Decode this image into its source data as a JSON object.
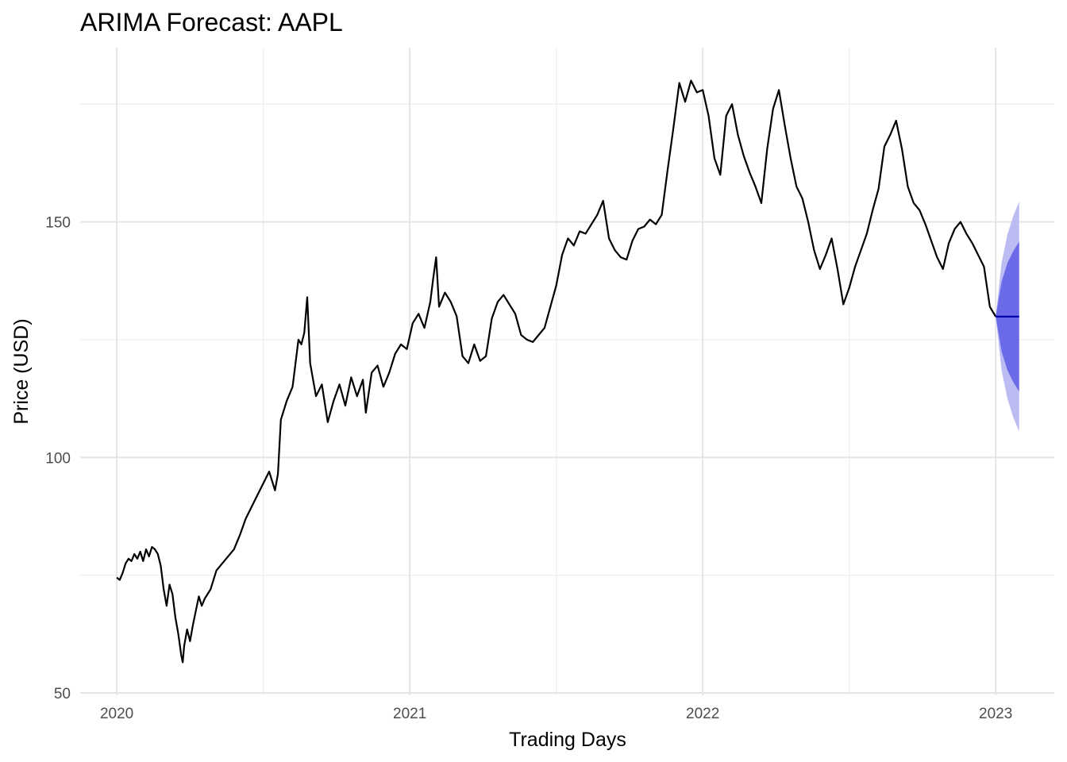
{
  "chart_data": {
    "type": "line",
    "title": "ARIMA Forecast: AAPL",
    "xlabel": "Trading Days",
    "ylabel": "Price (USD)",
    "xlim": [
      2019.875,
      2023.2
    ],
    "ylim": [
      49.5,
      187
    ],
    "x_ticks": [
      2020,
      2021,
      2022,
      2023
    ],
    "x_tick_labels": [
      "2020",
      "2021",
      "2022",
      "2023"
    ],
    "x_minor_ticks": [
      2020.5,
      2021.5,
      2022.5
    ],
    "y_ticks": [
      50,
      100,
      150
    ],
    "y_tick_labels": [
      "50",
      "100",
      "150"
    ],
    "y_minor_ticks": [
      75,
      125,
      175
    ],
    "grid": true,
    "legend": "none",
    "colors": {
      "history": "#000000",
      "forecast_mean": "#0000aa",
      "band_80": "#6b6bea",
      "band_95": "#bcbcf3"
    },
    "series": [
      {
        "values": [
          [
            2020.0,
            74.5
          ],
          [
            2020.01,
            74.0
          ],
          [
            2020.02,
            75.5
          ],
          [
            2020.03,
            77.5
          ],
          [
            2020.04,
            78.5
          ],
          [
            2020.05,
            78.0
          ],
          [
            2020.06,
            79.5
          ],
          [
            2020.07,
            78.5
          ],
          [
            2020.08,
            80.0
          ],
          [
            2020.09,
            78.0
          ],
          [
            2020.1,
            80.5
          ],
          [
            2020.11,
            79.0
          ],
          [
            2020.12,
            81.0
          ],
          [
            2020.13,
            80.5
          ],
          [
            2020.14,
            79.5
          ],
          [
            2020.15,
            77.0
          ],
          [
            2020.16,
            72.0
          ],
          [
            2020.17,
            68.5
          ],
          [
            2020.18,
            73.0
          ],
          [
            2020.19,
            71.0
          ],
          [
            2020.2,
            66.0
          ],
          [
            2020.21,
            62.5
          ],
          [
            2020.22,
            58.0
          ],
          [
            2020.225,
            56.5
          ],
          [
            2020.23,
            60.0
          ],
          [
            2020.24,
            63.5
          ],
          [
            2020.25,
            61.0
          ],
          [
            2020.26,
            64.5
          ],
          [
            2020.27,
            67.5
          ],
          [
            2020.28,
            70.5
          ],
          [
            2020.29,
            68.5
          ],
          [
            2020.3,
            70.0
          ],
          [
            2020.32,
            72.0
          ],
          [
            2020.34,
            76.0
          ],
          [
            2020.36,
            77.5
          ],
          [
            2020.38,
            79.0
          ],
          [
            2020.4,
            80.5
          ],
          [
            2020.42,
            83.5
          ],
          [
            2020.44,
            87.0
          ],
          [
            2020.46,
            89.5
          ],
          [
            2020.48,
            92.0
          ],
          [
            2020.5,
            94.5
          ],
          [
            2020.52,
            97.0
          ],
          [
            2020.53,
            95.0
          ],
          [
            2020.54,
            93.0
          ],
          [
            2020.55,
            96.5
          ],
          [
            2020.56,
            108.0
          ],
          [
            2020.58,
            112.0
          ],
          [
            2020.6,
            115.0
          ],
          [
            2020.62,
            125.0
          ],
          [
            2020.63,
            124.0
          ],
          [
            2020.64,
            126.5
          ],
          [
            2020.65,
            134.0
          ],
          [
            2020.66,
            120.0
          ],
          [
            2020.68,
            113.0
          ],
          [
            2020.7,
            115.5
          ],
          [
            2020.72,
            107.5
          ],
          [
            2020.74,
            112.0
          ],
          [
            2020.76,
            115.5
          ],
          [
            2020.78,
            111.0
          ],
          [
            2020.8,
            117.0
          ],
          [
            2020.82,
            113.0
          ],
          [
            2020.84,
            116.5
          ],
          [
            2020.85,
            109.5
          ],
          [
            2020.87,
            118.0
          ],
          [
            2020.89,
            119.5
          ],
          [
            2020.91,
            115.0
          ],
          [
            2020.93,
            118.0
          ],
          [
            2020.95,
            122.0
          ],
          [
            2020.97,
            124.0
          ],
          [
            2020.99,
            123.0
          ],
          [
            2021.01,
            128.5
          ],
          [
            2021.03,
            130.5
          ],
          [
            2021.05,
            127.5
          ],
          [
            2021.07,
            133.0
          ],
          [
            2021.08,
            138.0
          ],
          [
            2021.09,
            142.5
          ],
          [
            2021.1,
            132.0
          ],
          [
            2021.12,
            135.0
          ],
          [
            2021.14,
            133.0
          ],
          [
            2021.16,
            130.0
          ],
          [
            2021.18,
            121.5
          ],
          [
            2021.2,
            120.0
          ],
          [
            2021.22,
            124.0
          ],
          [
            2021.24,
            120.5
          ],
          [
            2021.26,
            121.5
          ],
          [
            2021.28,
            129.5
          ],
          [
            2021.3,
            133.0
          ],
          [
            2021.32,
            134.5
          ],
          [
            2021.34,
            132.5
          ],
          [
            2021.36,
            130.5
          ],
          [
            2021.38,
            126.0
          ],
          [
            2021.4,
            125.0
          ],
          [
            2021.42,
            124.5
          ],
          [
            2021.44,
            126.0
          ],
          [
            2021.46,
            127.5
          ],
          [
            2021.48,
            132.0
          ],
          [
            2021.5,
            136.5
          ],
          [
            2021.52,
            143.0
          ],
          [
            2021.54,
            146.5
          ],
          [
            2021.56,
            145.0
          ],
          [
            2021.58,
            148.0
          ],
          [
            2021.6,
            147.5
          ],
          [
            2021.62,
            149.5
          ],
          [
            2021.64,
            151.5
          ],
          [
            2021.66,
            154.5
          ],
          [
            2021.68,
            146.5
          ],
          [
            2021.7,
            144.0
          ],
          [
            2021.72,
            142.5
          ],
          [
            2021.74,
            142.0
          ],
          [
            2021.76,
            146.0
          ],
          [
            2021.78,
            148.5
          ],
          [
            2021.8,
            149.0
          ],
          [
            2021.82,
            150.5
          ],
          [
            2021.84,
            149.5
          ],
          [
            2021.86,
            151.5
          ],
          [
            2021.88,
            161.0
          ],
          [
            2021.9,
            170.0
          ],
          [
            2021.92,
            179.5
          ],
          [
            2021.94,
            175.5
          ],
          [
            2021.96,
            180.0
          ],
          [
            2021.98,
            177.5
          ],
          [
            2022.0,
            178.0
          ],
          [
            2022.02,
            172.5
          ],
          [
            2022.04,
            163.5
          ],
          [
            2022.06,
            160.0
          ],
          [
            2022.08,
            172.5
          ],
          [
            2022.1,
            175.0
          ],
          [
            2022.12,
            168.5
          ],
          [
            2022.14,
            164.0
          ],
          [
            2022.16,
            160.5
          ],
          [
            2022.18,
            157.5
          ],
          [
            2022.2,
            154.0
          ],
          [
            2022.22,
            165.5
          ],
          [
            2022.24,
            174.0
          ],
          [
            2022.26,
            178.0
          ],
          [
            2022.28,
            170.5
          ],
          [
            2022.3,
            163.5
          ],
          [
            2022.32,
            157.5
          ],
          [
            2022.34,
            155.0
          ],
          [
            2022.36,
            150.0
          ],
          [
            2022.38,
            144.0
          ],
          [
            2022.4,
            140.0
          ],
          [
            2022.42,
            143.0
          ],
          [
            2022.44,
            146.5
          ],
          [
            2022.46,
            140.0
          ],
          [
            2022.48,
            132.5
          ],
          [
            2022.5,
            136.0
          ],
          [
            2022.52,
            140.5
          ],
          [
            2022.54,
            144.0
          ],
          [
            2022.56,
            147.5
          ],
          [
            2022.58,
            152.5
          ],
          [
            2022.6,
            157.0
          ],
          [
            2022.62,
            166.0
          ],
          [
            2022.64,
            168.5
          ],
          [
            2022.66,
            171.5
          ],
          [
            2022.68,
            165.5
          ],
          [
            2022.7,
            157.5
          ],
          [
            2022.72,
            154.0
          ],
          [
            2022.74,
            152.5
          ],
          [
            2022.76,
            149.5
          ],
          [
            2022.78,
            146.0
          ],
          [
            2022.8,
            142.5
          ],
          [
            2022.82,
            140.0
          ],
          [
            2022.84,
            145.5
          ],
          [
            2022.86,
            148.5
          ],
          [
            2022.88,
            150.0
          ],
          [
            2022.9,
            147.5
          ],
          [
            2022.92,
            145.5
          ],
          [
            2022.94,
            143.0
          ],
          [
            2022.96,
            140.5
          ],
          [
            2022.98,
            132.0
          ],
          [
            2023.0,
            129.9
          ]
        ]
      }
    ],
    "forecast": {
      "x": [
        2023.0,
        2023.02,
        2023.04,
        2023.06,
        2023.08
      ],
      "mean": [
        129.9,
        129.9,
        129.9,
        129.9,
        129.9
      ],
      "lo80": [
        129.9,
        122.5,
        118.5,
        116.0,
        114.0
      ],
      "hi80": [
        129.9,
        137.3,
        141.3,
        143.8,
        145.8
      ],
      "lo95": [
        129.9,
        118.5,
        112.5,
        108.5,
        105.5
      ],
      "hi95": [
        129.9,
        141.3,
        147.3,
        151.3,
        154.3
      ]
    }
  }
}
